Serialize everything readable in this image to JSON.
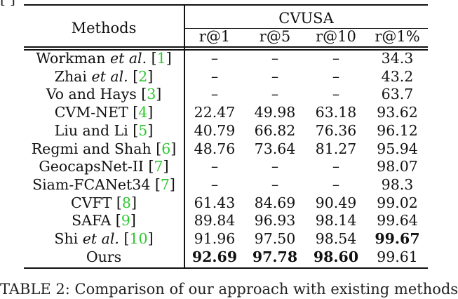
{
  "fragment_top": "[ ]",
  "table": {
    "methods_header": "Methods",
    "dataset_header": "CVUSA",
    "columns": [
      "r@1",
      "r@5",
      "r@10",
      "r@1%"
    ],
    "rows": [
      {
        "name": "Workman",
        "etal": "et al.",
        "cite": "1",
        "r1": "–",
        "r5": "–",
        "r10": "–",
        "r1p": "34.3"
      },
      {
        "name": "Zhai",
        "etal": "et al.",
        "cite": "2",
        "r1": "–",
        "r5": "–",
        "r10": "–",
        "r1p": "43.2"
      },
      {
        "name": "Vo and Hays",
        "etal": "",
        "cite": "3",
        "r1": "–",
        "r5": "–",
        "r10": "–",
        "r1p": "63.7"
      },
      {
        "name": "CVM-NET",
        "etal": "",
        "cite": "4",
        "r1": "22.47",
        "r5": "49.98",
        "r10": "63.18",
        "r1p": "93.62"
      },
      {
        "name": "Liu and Li",
        "etal": "",
        "cite": "5",
        "r1": "40.79",
        "r5": "66.82",
        "r10": "76.36",
        "r1p": "96.12"
      },
      {
        "name": "Regmi and Shah",
        "etal": "",
        "cite": "6",
        "r1": "48.76",
        "r5": "73.64",
        "r10": "81.27",
        "r1p": "95.94"
      },
      {
        "name": "GeocapsNet-II",
        "etal": "",
        "cite": "7",
        "r1": "–",
        "r5": "–",
        "r10": "–",
        "r1p": "98.07"
      },
      {
        "name": "Siam-FCANet34",
        "etal": "",
        "cite": "7",
        "r1": "–",
        "r5": "–",
        "r10": "–",
        "r1p": "98.3"
      },
      {
        "name": "CVFT",
        "etal": "",
        "cite": "8",
        "r1": "61.43",
        "r5": "84.69",
        "r10": "90.49",
        "r1p": "99.02"
      },
      {
        "name": "SAFA",
        "etal": "",
        "cite": "9",
        "r1": "89.84",
        "r5": "96.93",
        "r10": "98.14",
        "r1p": "99.64"
      },
      {
        "name": "Shi",
        "etal": "et al.",
        "cite": "10",
        "r1": "91.96",
        "r5": "97.50",
        "r10": "98.54",
        "r1p": "99.67"
      },
      {
        "name": "Ours",
        "etal": "",
        "cite": "",
        "r1": "92.69",
        "r5": "97.78",
        "r10": "98.60",
        "r1p": "99.61"
      }
    ]
  },
  "caption": "TABLE 2: Comparison of our approach with existing methods"
}
